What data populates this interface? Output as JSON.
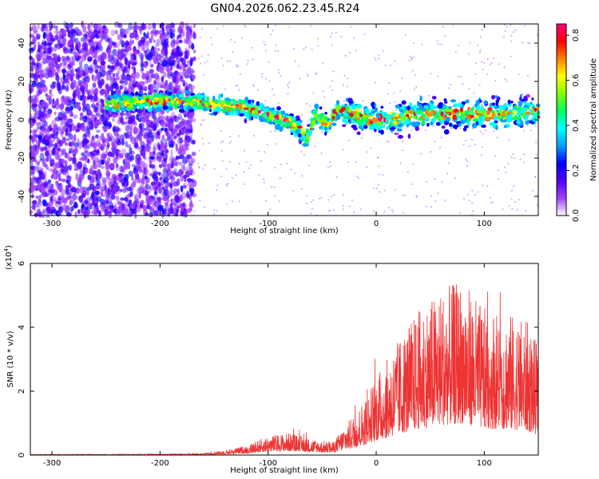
{
  "figure": {
    "title": "GN04.2026.062.23.45.R24"
  },
  "chart_data": [
    {
      "type": "heatmap",
      "xlabel": "Height of straight line (km)",
      "ylabel": "Frequency (Hz)",
      "xlim": [
        -320,
        150
      ],
      "ylim": [
        -50,
        50
      ],
      "xticks": [
        -300,
        -200,
        -100,
        0,
        100
      ],
      "yticks": [
        -40,
        -20,
        0,
        20,
        40
      ],
      "colorbar": {
        "label": "Normalized spectral amplitude",
        "range": [
          0.0,
          0.85
        ],
        "ticks": [
          0.0,
          0.2,
          0.4,
          0.6,
          0.8
        ],
        "colormap": [
          "#ffffff",
          "#a040ff",
          "#5000ff",
          "#0000ff",
          "#00a0ff",
          "#00ffff",
          "#00ff60",
          "#80ff00",
          "#ffff00",
          "#ff8000",
          "#ff0000",
          "#ff0080"
        ]
      },
      "ridge": {
        "x": [
          -250,
          -200,
          -170,
          -150,
          -120,
          -100,
          -80,
          -70,
          -65,
          -55,
          -45,
          -35,
          -25,
          -10,
          0,
          20,
          50,
          80,
          110,
          150
        ],
        "y": [
          8,
          10,
          9,
          8,
          6,
          3,
          -1,
          -5,
          -10,
          3,
          -3,
          6,
          4,
          1,
          0,
          1,
          3,
          3,
          3,
          4
        ]
      },
      "noise_region_x": [
        -320,
        -168
      ]
    },
    {
      "type": "line",
      "xlabel": "Height of straight line (km)",
      "ylabel": "SNR (10 * v/v)",
      "yscale_label": "(x10",
      "yscale_exp": "4",
      "yscale_close": ")",
      "xlim": [
        -320,
        150
      ],
      "ylim": [
        0,
        6
      ],
      "xticks": [
        -300,
        -200,
        -100,
        0,
        100
      ],
      "yticks": [
        0,
        2,
        4,
        6
      ],
      "color": "#ee3333",
      "envelope": {
        "x": [
          -320,
          -200,
          -160,
          -140,
          -120,
          -100,
          -80,
          -60,
          -40,
          -30,
          -20,
          -10,
          0,
          10,
          20,
          40,
          60,
          80,
          100,
          120,
          140,
          150
        ],
        "y": [
          0.02,
          0.03,
          0.05,
          0.15,
          0.3,
          0.6,
          0.7,
          0.5,
          0.4,
          0.9,
          1.3,
          1.8,
          2.5,
          3.0,
          3.6,
          4.6,
          5.2,
          5.5,
          4.6,
          4.5,
          4.2,
          3.4
        ]
      }
    }
  ]
}
